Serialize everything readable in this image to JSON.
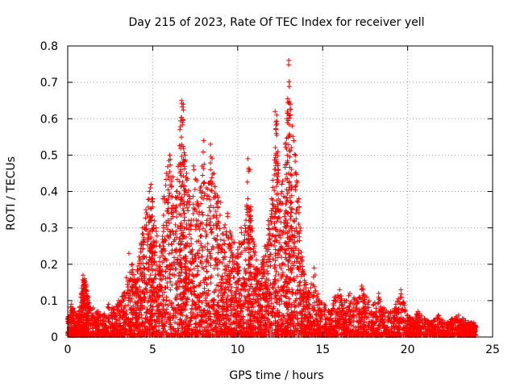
{
  "chart_data": {
    "type": "scatter",
    "title": "Day 215 of 2023, Rate Of TEC Index for receiver yell",
    "xlabel": "GPS time / hours",
    "ylabel": "ROTI / TECUs",
    "xlim": [
      0,
      25
    ],
    "ylim": [
      0,
      0.8
    ],
    "xticks": [
      "0",
      "5",
      "10",
      "15",
      "20",
      "25"
    ],
    "yticks": [
      "0",
      "0.1",
      "0.2",
      "0.3",
      "0.4",
      "0.5",
      "0.6",
      "0.7",
      "0.8"
    ],
    "grid": true,
    "marker": "+",
    "color": "#ff0000",
    "series": [
      {
        "points": [
          [
            0.0,
            0.05
          ],
          [
            0.2,
            0.09
          ],
          [
            0.4,
            0.07
          ],
          [
            0.6,
            0.06
          ],
          [
            0.8,
            0.12
          ],
          [
            0.9,
            0.17
          ],
          [
            1.0,
            0.16
          ],
          [
            1.1,
            0.14
          ],
          [
            1.2,
            0.11
          ],
          [
            1.5,
            0.08
          ],
          [
            1.8,
            0.07
          ],
          [
            2.1,
            0.06
          ],
          [
            2.4,
            0.09
          ],
          [
            2.7,
            0.08
          ],
          [
            3.0,
            0.1
          ],
          [
            3.3,
            0.12
          ],
          [
            3.6,
            0.23
          ],
          [
            3.8,
            0.2
          ],
          [
            4.0,
            0.15
          ],
          [
            4.2,
            0.22
          ],
          [
            4.4,
            0.3
          ],
          [
            4.6,
            0.35
          ],
          [
            4.8,
            0.4
          ],
          [
            4.9,
            0.42
          ],
          [
            5.0,
            0.38
          ],
          [
            5.2,
            0.3
          ],
          [
            5.4,
            0.25
          ],
          [
            5.6,
            0.38
          ],
          [
            5.8,
            0.45
          ],
          [
            6.0,
            0.5
          ],
          [
            6.2,
            0.44
          ],
          [
            6.4,
            0.4
          ],
          [
            6.6,
            0.57
          ],
          [
            6.7,
            0.65
          ],
          [
            6.8,
            0.64
          ],
          [
            6.9,
            0.5
          ],
          [
            7.0,
            0.45
          ],
          [
            7.2,
            0.38
          ],
          [
            7.4,
            0.47
          ],
          [
            7.6,
            0.43
          ],
          [
            7.8,
            0.41
          ],
          [
            8.0,
            0.54
          ],
          [
            8.2,
            0.38
          ],
          [
            8.4,
            0.53
          ],
          [
            8.6,
            0.45
          ],
          [
            8.8,
            0.39
          ],
          [
            9.0,
            0.37
          ],
          [
            9.2,
            0.3
          ],
          [
            9.4,
            0.34
          ],
          [
            9.6,
            0.28
          ],
          [
            9.8,
            0.26
          ],
          [
            10.0,
            0.24
          ],
          [
            10.2,
            0.3
          ],
          [
            10.4,
            0.28
          ],
          [
            10.6,
            0.49
          ],
          [
            10.7,
            0.46
          ],
          [
            10.8,
            0.32
          ],
          [
            11.0,
            0.25
          ],
          [
            11.2,
            0.18
          ],
          [
            11.4,
            0.2
          ],
          [
            11.6,
            0.25
          ],
          [
            11.8,
            0.32
          ],
          [
            12.0,
            0.38
          ],
          [
            12.2,
            0.62
          ],
          [
            12.3,
            0.61
          ],
          [
            12.4,
            0.46
          ],
          [
            12.6,
            0.42
          ],
          [
            12.8,
            0.53
          ],
          [
            12.9,
            0.6
          ],
          [
            13.0,
            0.76
          ],
          [
            13.1,
            0.64
          ],
          [
            13.2,
            0.58
          ],
          [
            13.4,
            0.5
          ],
          [
            13.6,
            0.38
          ],
          [
            13.8,
            0.22
          ],
          [
            14.0,
            0.15
          ],
          [
            14.2,
            0.12
          ],
          [
            14.5,
            0.19
          ],
          [
            14.8,
            0.1
          ],
          [
            15.1,
            0.09
          ],
          [
            15.4,
            0.07
          ],
          [
            15.7,
            0.11
          ],
          [
            16.0,
            0.13
          ],
          [
            16.3,
            0.1
          ],
          [
            16.6,
            0.12
          ],
          [
            17.0,
            0.1
          ],
          [
            17.3,
            0.14
          ],
          [
            17.6,
            0.11
          ],
          [
            18.0,
            0.09
          ],
          [
            18.3,
            0.12
          ],
          [
            18.6,
            0.08
          ],
          [
            19.0,
            0.07
          ],
          [
            19.3,
            0.09
          ],
          [
            19.6,
            0.13
          ],
          [
            20.0,
            0.06
          ],
          [
            20.3,
            0.05
          ],
          [
            20.6,
            0.07
          ],
          [
            21.0,
            0.05
          ],
          [
            21.4,
            0.04
          ],
          [
            21.8,
            0.06
          ],
          [
            22.2,
            0.04
          ],
          [
            22.6,
            0.05
          ],
          [
            23.0,
            0.06
          ],
          [
            23.3,
            0.05
          ],
          [
            23.6,
            0.04
          ],
          [
            23.9,
            0.04
          ],
          [
            24.0,
            0.03
          ]
        ]
      }
    ]
  }
}
